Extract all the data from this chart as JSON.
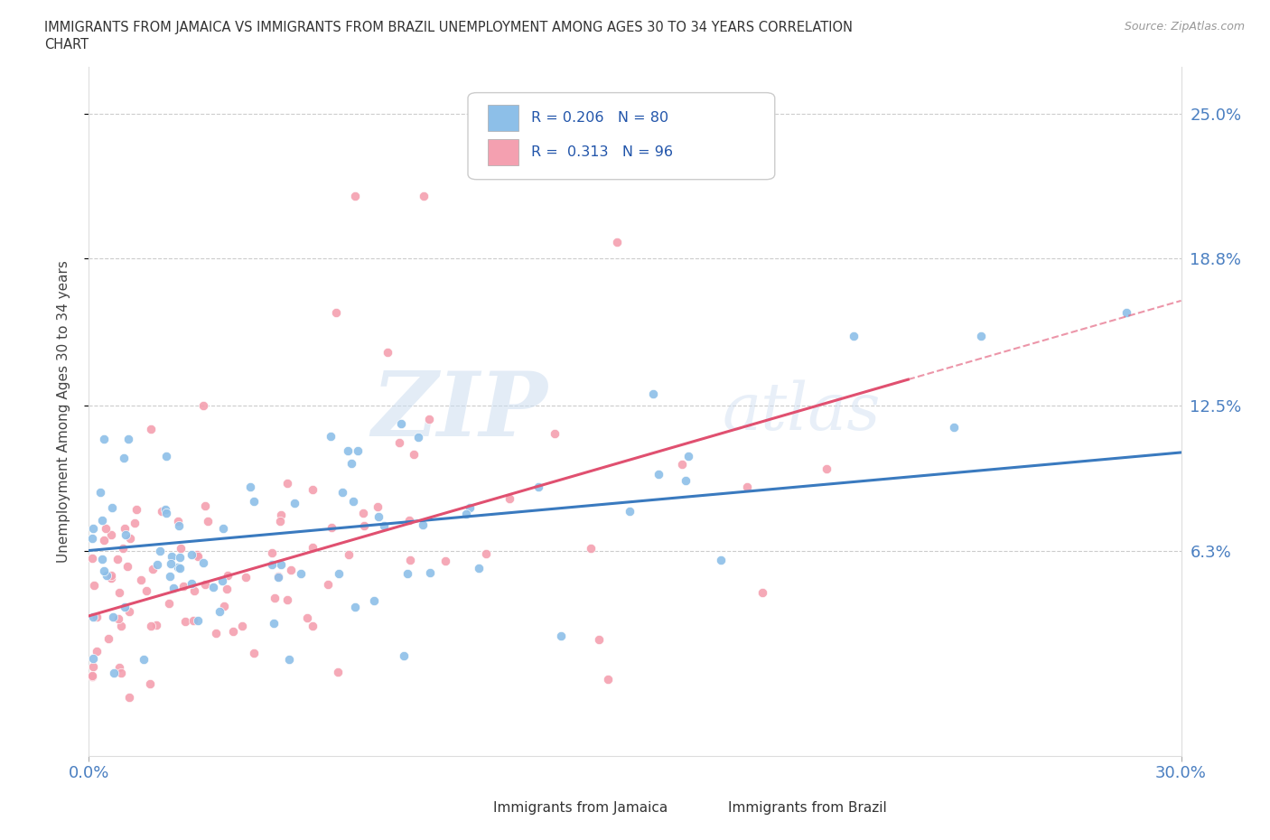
{
  "title_line1": "IMMIGRANTS FROM JAMAICA VS IMMIGRANTS FROM BRAZIL UNEMPLOYMENT AMONG AGES 30 TO 34 YEARS CORRELATION",
  "title_line2": "CHART",
  "source_text": "Source: ZipAtlas.com",
  "ylabel": "Unemployment Among Ages 30 to 34 years",
  "x_min": 0.0,
  "x_max": 0.3,
  "y_min": -0.025,
  "y_max": 0.27,
  "x_tick_labels": [
    "0.0%",
    "30.0%"
  ],
  "y_tick_labels": [
    "6.3%",
    "12.5%",
    "18.8%",
    "25.0%"
  ],
  "y_tick_values": [
    0.063,
    0.125,
    0.188,
    0.25
  ],
  "jamaica_color": "#8dbfe8",
  "brazil_color": "#f4a0b0",
  "jamaica_line_color": "#3a7abf",
  "brazil_line_color": "#e05070",
  "jamaica_R": 0.206,
  "jamaica_N": 80,
  "brazil_R": 0.313,
  "brazil_N": 96,
  "watermark_zip": "ZIP",
  "watermark_atlas": "atlas",
  "background_color": "#ffffff"
}
